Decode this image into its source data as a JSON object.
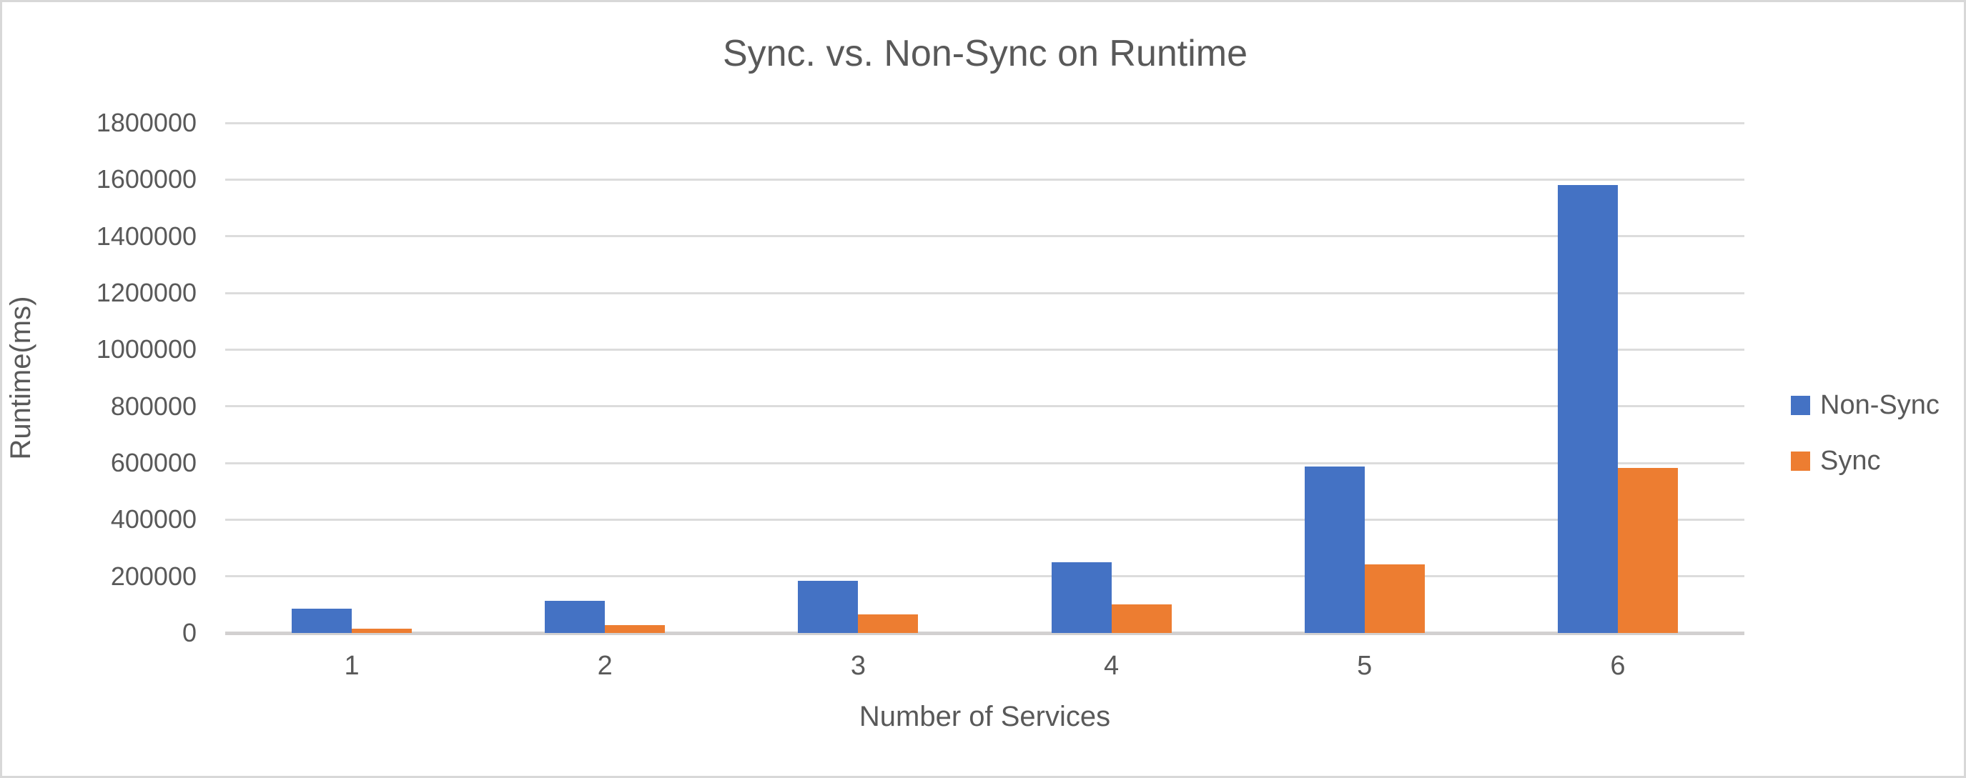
{
  "chart_data": {
    "type": "bar",
    "title": "Sync. vs. Non-Sync on Runtime",
    "xlabel": "Number of Services",
    "ylabel": "Runtime(ms)",
    "categories": [
      "1",
      "2",
      "3",
      "4",
      "5",
      "6"
    ],
    "series": [
      {
        "name": "Non-Sync",
        "color": "#4472C4",
        "values": [
          85000,
          113000,
          183000,
          249000,
          587000,
          1580000
        ]
      },
      {
        "name": "Sync",
        "color": "#ED7D31",
        "values": [
          14000,
          27000,
          66000,
          100000,
          243000,
          582000
        ]
      }
    ],
    "ylim": [
      0,
      1800000
    ],
    "ytick_step": 200000,
    "ytick_labels": [
      "0",
      "200000",
      "400000",
      "600000",
      "800000",
      "1000000",
      "1200000",
      "1400000",
      "1600000",
      "1800000"
    ],
    "grid": true,
    "legend_position": "right",
    "text_color": "#595959",
    "gridline_color": "#dcdcdc",
    "axisline_color": "#d2d0d0"
  }
}
